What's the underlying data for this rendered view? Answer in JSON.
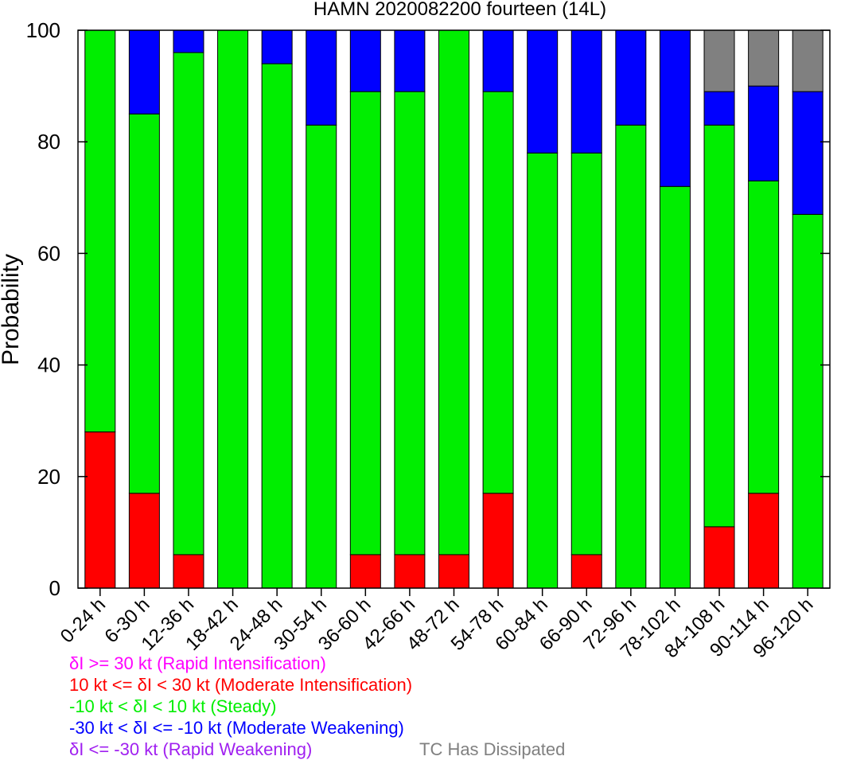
{
  "chart_data": {
    "type": "bar",
    "stacked": true,
    "title": "HAMN 2020082200 fourteen (14L)",
    "xlabel": "",
    "ylabel": "Probability",
    "ylim": [
      0,
      100
    ],
    "yticks": [
      0,
      20,
      40,
      60,
      80,
      100
    ],
    "grid": false,
    "categories": [
      "0-24 h",
      "6-30 h",
      "12-36 h",
      "18-42 h",
      "24-48 h",
      "30-54 h",
      "36-60 h",
      "42-66 h",
      "48-72 h",
      "54-78 h",
      "60-84 h",
      "66-90 h",
      "72-96 h",
      "78-102 h",
      "84-108 h",
      "90-114 h",
      "96-120 h"
    ],
    "series": [
      {
        "key": "rapid_intensification",
        "color": "#ff00ff",
        "values": [
          0,
          0,
          0,
          0,
          0,
          0,
          0,
          0,
          0,
          0,
          0,
          0,
          0,
          0,
          0,
          0,
          0
        ]
      },
      {
        "key": "moderate_intensification",
        "color": "#ff0000",
        "values": [
          28,
          17,
          6,
          0,
          0,
          0,
          6,
          6,
          6,
          17,
          0,
          6,
          0,
          0,
          11,
          17,
          0
        ]
      },
      {
        "key": "steady",
        "color": "#00ee00",
        "values": [
          72,
          68,
          90,
          100,
          94,
          83,
          83,
          83,
          94,
          72,
          78,
          72,
          83,
          72,
          72,
          56,
          67
        ]
      },
      {
        "key": "moderate_weakening",
        "color": "#0000ff",
        "values": [
          0,
          15,
          4,
          0,
          6,
          17,
          11,
          11,
          0,
          11,
          22,
          22,
          17,
          28,
          6,
          17,
          22
        ]
      },
      {
        "key": "rapid_weakening",
        "color": "#a020f0",
        "values": [
          0,
          0,
          0,
          0,
          0,
          0,
          0,
          0,
          0,
          0,
          0,
          0,
          0,
          0,
          0,
          0,
          0
        ]
      },
      {
        "key": "dissipated",
        "color": "#808080",
        "values": [
          0,
          0,
          0,
          0,
          0,
          0,
          0,
          0,
          0,
          0,
          0,
          0,
          0,
          0,
          11,
          10,
          11
        ]
      }
    ]
  },
  "legend": {
    "items": [
      {
        "text": "δI >= 30 kt (Rapid Intensification)",
        "color": "#ff00ff"
      },
      {
        "text": "10 kt <= δI < 30 kt (Moderate Intensification)",
        "color": "#ff0000"
      },
      {
        "text": "-10 kt < δI < 10 kt (Steady)",
        "color": "#00ee00"
      },
      {
        "text": "-30 kt < δI <= -10 kt (Moderate Weakening)",
        "color": "#0000ff"
      },
      {
        "text": "δI <= -30 kt (Rapid Weakening)",
        "color": "#a020f0"
      }
    ],
    "dissipated": {
      "text": "TC Has Dissipated",
      "color": "#808080"
    }
  }
}
